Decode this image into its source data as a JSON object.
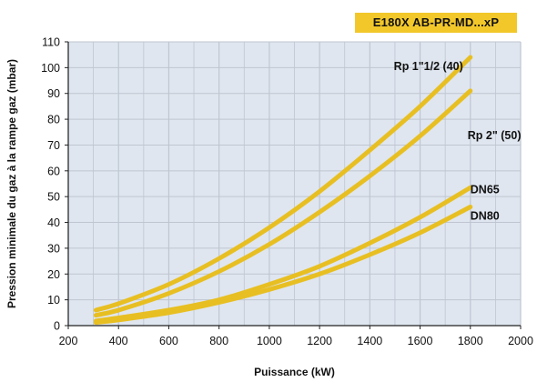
{
  "chart_data": {
    "type": "line",
    "title": "E180X AB-PR-MD...xP",
    "xlabel": "Puissance (kW)",
    "ylabel": "Pression minimale du gaz à la rampe gaz (mbar)",
    "xlim": [
      200,
      2000
    ],
    "ylim": [
      0,
      110
    ],
    "x_ticks": [
      "200",
      "400",
      "600",
      "800",
      "1000",
      "1200",
      "1400",
      "1600",
      "1800",
      "2000"
    ],
    "y_ticks": [
      "0",
      "10",
      "20",
      "30",
      "40",
      "50",
      "60",
      "70",
      "80",
      "90",
      "100",
      "110"
    ],
    "grid": true,
    "line_color": "#e8bf22",
    "title_badge_color": "#f2c72a",
    "grid_color": "#bfc6d1",
    "plot_background": "#dfe6ef",
    "series": [
      {
        "name": "Rp 1\"1/2 (40)",
        "x": [
          310,
          400,
          600,
          800,
          1000,
          1200,
          1400,
          1600,
          1800
        ],
        "y": [
          6,
          8.5,
          16,
          26,
          38,
          52,
          68,
          85,
          104
        ]
      },
      {
        "name": "Rp 2\" (50)",
        "x": [
          310,
          400,
          600,
          800,
          1000,
          1200,
          1400,
          1600,
          1800
        ],
        "y": [
          4,
          6,
          12.5,
          21,
          31.5,
          44,
          58,
          73.5,
          91
        ]
      },
      {
        "name": "DN65",
        "x": [
          310,
          400,
          600,
          800,
          1000,
          1200,
          1400,
          1600,
          1800
        ],
        "y": [
          1.8,
          3,
          6,
          10,
          16,
          23,
          32,
          42,
          53.5
        ]
      },
      {
        "name": "DN80",
        "x": [
          310,
          400,
          600,
          800,
          1000,
          1200,
          1400,
          1600,
          1800
        ],
        "y": [
          1.2,
          2.2,
          5,
          9,
          14,
          20,
          27.5,
          36,
          46
        ]
      }
    ]
  }
}
